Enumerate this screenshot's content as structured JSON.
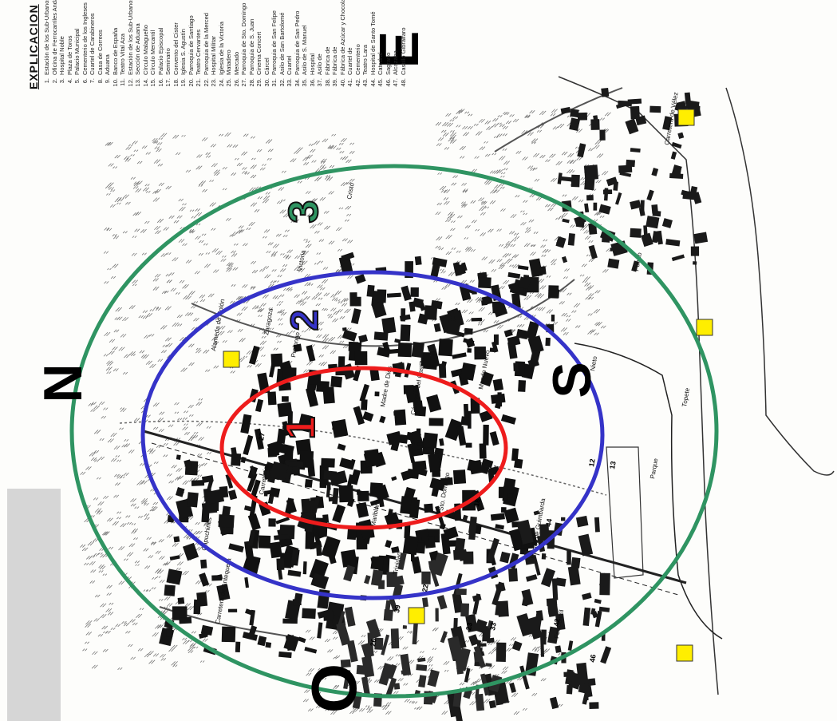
{
  "legend": {
    "title": "EXPLICACION",
    "items": [
      "Estación de los Sub-Urbanos",
      "Oficina de Ferrocarriles Andaluces",
      "Hospital Noble",
      "Plaza de Toros",
      "Palacio Municipal",
      "Cementerio de los Ingleses",
      "Cuartel de Carabineros",
      "Casa de Correos",
      "Aduana",
      "Banco de España",
      "Teatro Vital Aza",
      "Estación de los Sub-Urbanos",
      "Sección de Aduana",
      "Círculo Malagueño",
      "Círculo Mercantil",
      "Palacio Episcopal",
      "Seminario",
      "Convento del Cister",
      "Iglesia S. Agustín",
      "Parroquia de Santiago",
      "Teatro Cervantes",
      "Parroquia de la Merced",
      "Hospital Militar",
      "Iglesia de la Victoria",
      "Matadero",
      "Mercado",
      "Parroquia de Sto. Domingo",
      "Parroquia de S. Juan",
      "Cinema Concert",
      "Cárcel",
      "Parroquia de San Felipe",
      "Asilo de San Bartolomé",
      "Cuartel",
      "Parroquia de San Pedro",
      "Asilo de S. Manuel",
      "Hospital",
      "Asilo de",
      "Fábrica de",
      "Fábrica de",
      "Fábrica de Azúcar y Chocolate",
      "Cuartel de",
      "Cementerio",
      "Teatro Lara",
      "Hospital de Santo Tomé",
      "Catedral",
      "Sagrario",
      "Alcazaba",
      "Castillo Gibralfaro"
    ]
  },
  "rings": [
    {
      "label": "1",
      "color": "#ee1c1c"
    },
    {
      "label": "2",
      "color": "#3533c8"
    },
    {
      "label": "3",
      "color": "#2f9462"
    }
  ],
  "compass": {
    "north": "N",
    "south": "S",
    "east": "E",
    "west": "O"
  },
  "marker_color": "#ffee00",
  "streets": {
    "alameda": "Alameda de Colón",
    "carretera_velez": "Carretera de Vélez",
    "carretera_antequera": "Carretera de Antequera",
    "canovas": "Cánovas del Castillo",
    "madre_dios": "Madre de Dios",
    "mundo_nuevo": "Mundo Nuevo",
    "topete": "Topete",
    "zaragoza": "Zaragoza",
    "prolongo": "Prolongo",
    "victoria": "Victoria",
    "mariblanca": "Mariblanca",
    "capuchinos": "Capuchinos",
    "cristo": "Cristo",
    "parque": "Parque",
    "carreteria": "Carretería",
    "trinidad": "Trinidad",
    "pasillo": "Pasillo de Guimbarda",
    "ferrocarril": "Ferrocarril",
    "nieto": "Nieto",
    "puerto": "Puerto",
    "santo_domingo": "Sto. Domingo"
  },
  "map_numbers": [
    "12",
    "13",
    "18",
    "22",
    "23",
    "26",
    "27",
    "33",
    "39",
    "42",
    "44",
    "46"
  ]
}
